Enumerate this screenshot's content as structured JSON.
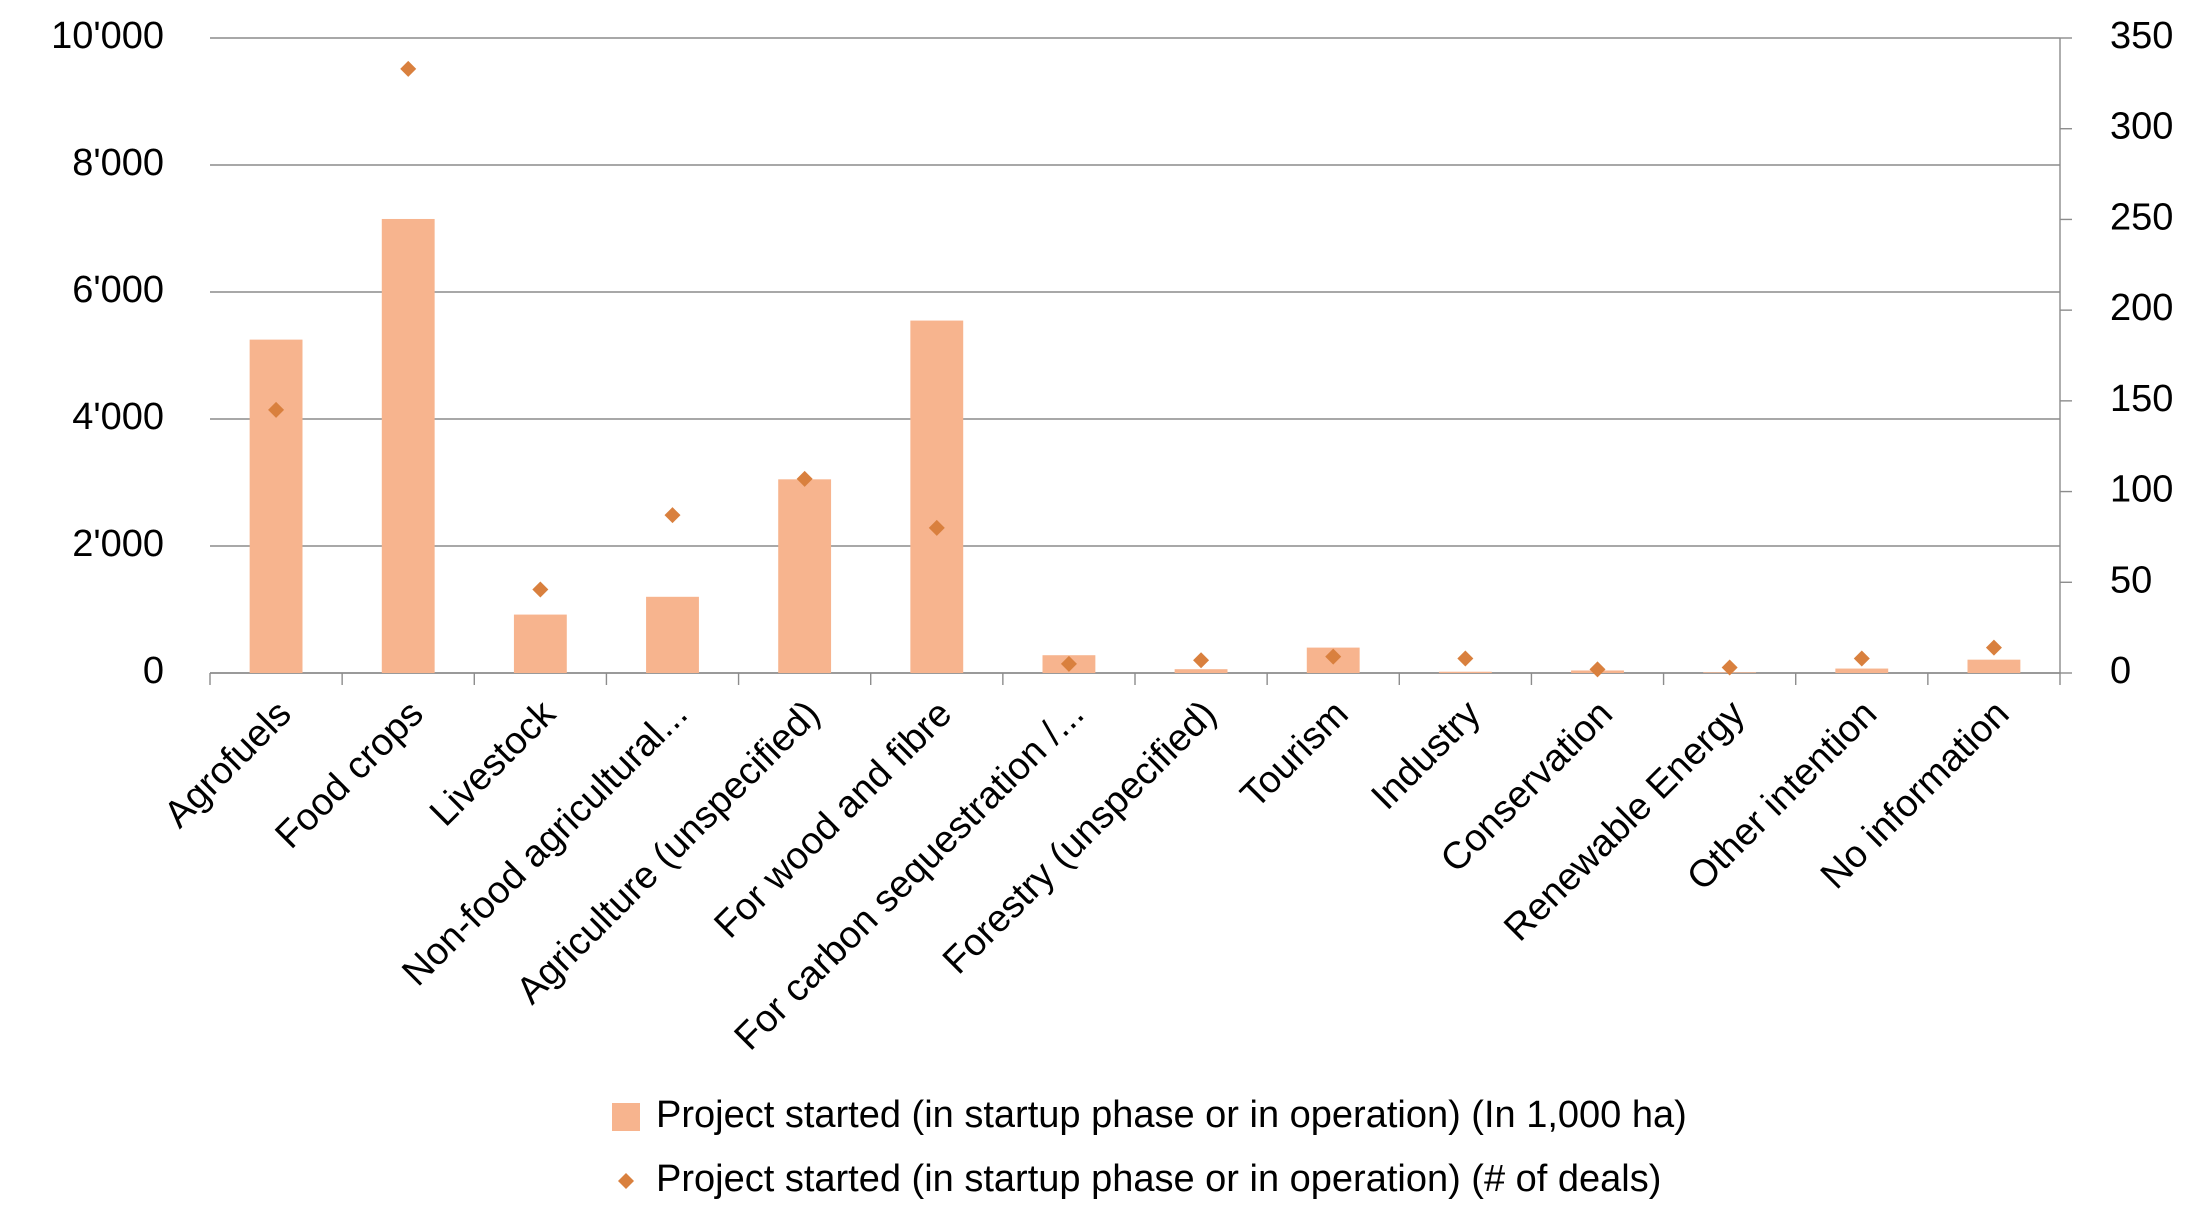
{
  "chart_data": {
    "type": "bar_scatter",
    "categories": [
      "Agrofuels",
      "Food crops",
      "Livestock",
      "Non-food agricultural...",
      "Agriculture (unspecified)",
      "For wood and fibre",
      "For carbon sequestration /...",
      "Forestry (unspecified)",
      "Tourism",
      "Industry",
      "Conservation",
      "Renewable Energy",
      "Other intention",
      "No information"
    ],
    "series": [
      {
        "name": "Project started (in startup phase or in operation) (In 1,000 ha)",
        "color": "#f7b48e",
        "axis": "y",
        "values": [
          5250,
          7150,
          920,
          1200,
          3050,
          5550,
          280,
          60,
          400,
          20,
          40,
          10,
          70,
          210
        ]
      },
      {
        "name": "Project started (in startup phase or in operation) (# of deals)",
        "color": "#d9803e",
        "axis": "y2",
        "values": [
          145,
          333,
          46,
          87,
          107,
          80,
          5,
          7,
          9,
          8,
          2,
          3,
          8,
          14
        ]
      }
    ],
    "ylim": [
      0,
      10000
    ],
    "yticks": [
      0,
      {
        "value": 2000,
        "label": "2'000"
      },
      {
        "value": 4000,
        "label": "4'000"
      },
      {
        "value": 6000,
        "label": "6'000"
      },
      {
        "value": 8000,
        "label": "8'000"
      },
      {
        "value": 10000,
        "label": "10'000"
      }
    ],
    "y2lim": [
      0,
      350
    ],
    "y2ticks": [
      0,
      50,
      100,
      150,
      200,
      250,
      300,
      350
    ],
    "grid": true
  }
}
